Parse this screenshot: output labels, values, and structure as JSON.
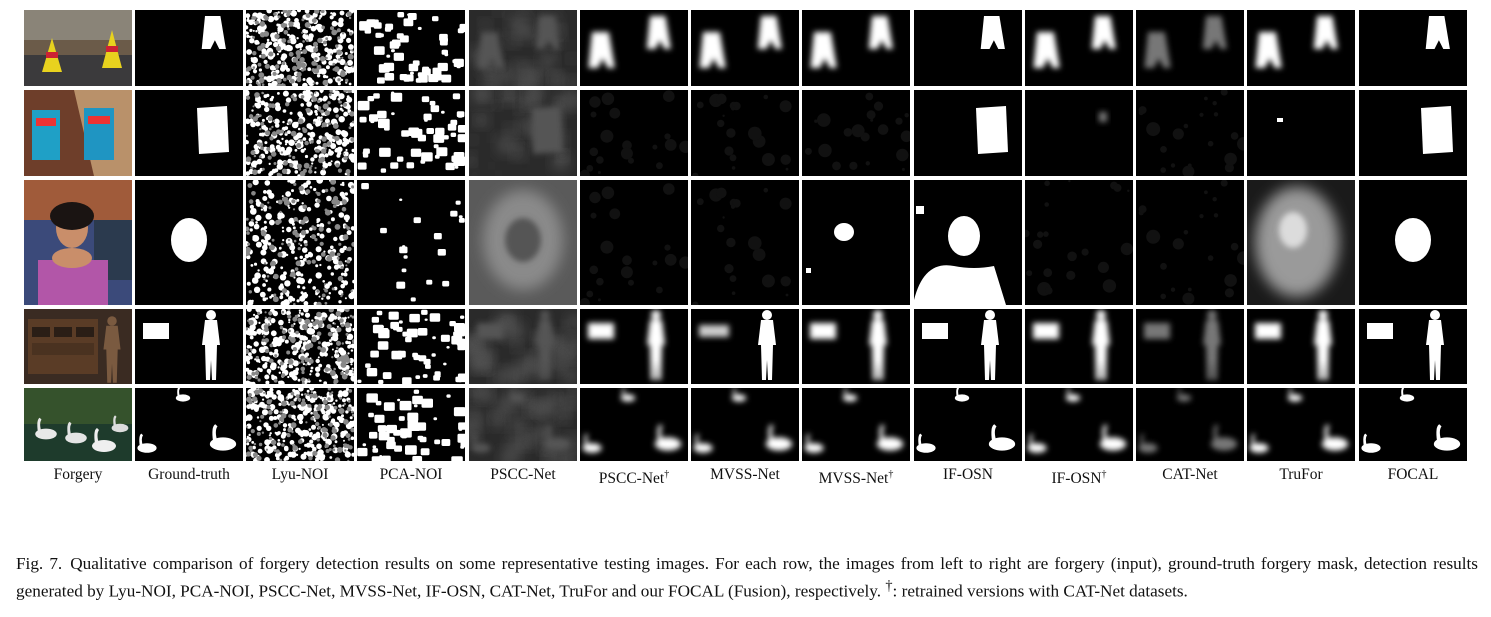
{
  "figure": {
    "columns": [
      {
        "label": "Forgery",
        "sup": ""
      },
      {
        "label": "Ground-truth",
        "sup": ""
      },
      {
        "label": "Lyu-NOI",
        "sup": ""
      },
      {
        "label": "PCA-NOI",
        "sup": ""
      },
      {
        "label": "PSCC-Net",
        "sup": ""
      },
      {
        "label": "PSCC-Net",
        "sup": "†"
      },
      {
        "label": "MVSS-Net",
        "sup": ""
      },
      {
        "label": "MVSS-Net",
        "sup": "†"
      },
      {
        "label": "IF-OSN",
        "sup": ""
      },
      {
        "label": "IF-OSN",
        "sup": "†"
      },
      {
        "label": "CAT-Net",
        "sup": ""
      },
      {
        "label": "TruFor",
        "sup": ""
      },
      {
        "label": "FOCAL",
        "sup": ""
      }
    ],
    "rows": 5
  },
  "caption": {
    "number": "Fig. 7.",
    "text": "Qualitative comparison of forgery detection results on some representative testing images. For each row, the images from left to right are forgery (input), ground-truth forgery mask, detection results generated by Lyu-NOI, PCA-NOI, PSCC-Net, MVSS-Net, IF-OSN, CAT-Net, TruFor and our FOCAL (Fusion), respectively. ",
    "dagger": "†",
    "tail": ": retrained versions with CAT-Net datasets."
  }
}
